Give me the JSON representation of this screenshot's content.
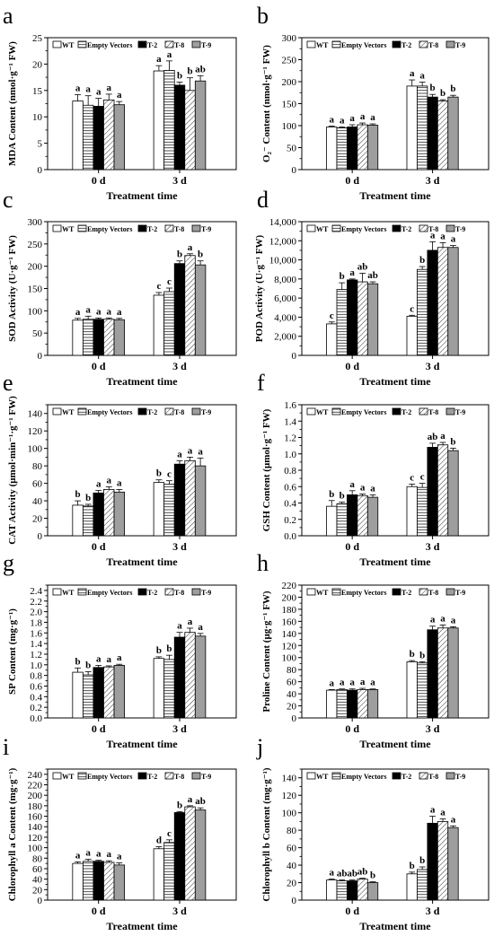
{
  "legend_entries": [
    "WT",
    "Empty Vectors",
    "T-2",
    "T-8",
    "T-9"
  ],
  "colors": {
    "WT": "#ffffff",
    "Empty Vectors": "#ffffff",
    "T-2": "#000000",
    "T-8": "#ffffff",
    "T-9": "#9e9e9e"
  },
  "chart_data": [
    {
      "panel": "a",
      "type": "bar",
      "ylabel": "MDA Content (nmol·g⁻¹ FW)",
      "xlabel": "Treatment time",
      "categories": [
        "0 d",
        "3 d"
      ],
      "ylim": [
        0,
        25
      ],
      "ytick_step": 5,
      "ytick_format": "plain",
      "series": [
        {
          "name": "WT",
          "values": [
            13.0,
            18.7
          ],
          "errors": [
            1.2,
            1.0
          ],
          "letters": [
            "a",
            "a"
          ]
        },
        {
          "name": "Empty Vectors",
          "values": [
            12.2,
            18.8
          ],
          "errors": [
            1.8,
            1.8
          ],
          "letters": [
            "a",
            "a"
          ]
        },
        {
          "name": "T-2",
          "values": [
            12.0,
            16.0
          ],
          "errors": [
            1.5,
            0.6
          ],
          "letters": [
            "a",
            "b"
          ]
        },
        {
          "name": "T-8",
          "values": [
            13.2,
            15.0
          ],
          "errors": [
            1.1,
            2.4
          ],
          "letters": [
            "a",
            "b"
          ]
        },
        {
          "name": "T-9",
          "values": [
            12.3,
            16.8
          ],
          "errors": [
            0.6,
            1.0
          ],
          "letters": [
            "a",
            "ab"
          ]
        }
      ]
    },
    {
      "panel": "b",
      "type": "bar",
      "ylabel": "O₂⁻ Content (nmol·g⁻¹ FW)",
      "xlabel": "Treatment time",
      "categories": [
        "0 d",
        "3 d"
      ],
      "ylim": [
        0,
        300
      ],
      "ytick_step": 50,
      "ytick_format": "plain",
      "series": [
        {
          "name": "WT",
          "values": [
            97,
            190
          ],
          "errors": [
            2,
            14
          ],
          "letters": [
            "a",
            "a"
          ]
        },
        {
          "name": "Empty Vectors",
          "values": [
            95,
            190
          ],
          "errors": [
            2,
            9
          ],
          "letters": [
            "a",
            "a"
          ]
        },
        {
          "name": "T-2",
          "values": [
            97,
            165
          ],
          "errors": [
            5,
            6
          ],
          "letters": [
            "a",
            "b"
          ]
        },
        {
          "name": "T-8",
          "values": [
            102,
            156
          ],
          "errors": [
            4,
            3
          ],
          "letters": [
            "a",
            "b"
          ]
        },
        {
          "name": "T-9",
          "values": [
            101,
            165
          ],
          "errors": [
            3,
            4
          ],
          "letters": [
            "a",
            "b"
          ]
        }
      ]
    },
    {
      "panel": "c",
      "type": "bar",
      "ylabel": "SOD Activity (U·g⁻¹ FW)",
      "xlabel": "Treatment time",
      "categories": [
        "0 d",
        "3 d"
      ],
      "ylim": [
        0,
        300
      ],
      "ytick_step": 50,
      "ytick_format": "plain",
      "series": [
        {
          "name": "WT",
          "values": [
            79,
            135
          ],
          "errors": [
            4,
            6
          ],
          "letters": [
            "a",
            "c"
          ]
        },
        {
          "name": "Empty Vectors",
          "values": [
            81,
            143
          ],
          "errors": [
            7,
            8
          ],
          "letters": [
            "a",
            "c"
          ]
        },
        {
          "name": "T-2",
          "values": [
            81,
            206
          ],
          "errors": [
            3,
            6
          ],
          "letters": [
            "a",
            "b"
          ]
        },
        {
          "name": "T-8",
          "values": [
            81,
            224
          ],
          "errors": [
            3,
            4
          ],
          "letters": [
            "a",
            "a"
          ]
        },
        {
          "name": "T-9",
          "values": [
            80,
            203
          ],
          "errors": [
            3,
            9
          ],
          "letters": [
            "a",
            "b"
          ]
        }
      ]
    },
    {
      "panel": "d",
      "type": "bar",
      "ylabel": "POD Activity (U·g⁻¹ FW)",
      "xlabel": "Treatment time",
      "categories": [
        "0 d",
        "3 d"
      ],
      "ylim": [
        0,
        14000
      ],
      "ytick_step": 2000,
      "ytick_format": "comma",
      "series": [
        {
          "name": "WT",
          "values": [
            3300,
            4100
          ],
          "errors": [
            200,
            100
          ],
          "letters": [
            "c",
            "c"
          ]
        },
        {
          "name": "Empty Vectors",
          "values": [
            6900,
            9000
          ],
          "errors": [
            700,
            300
          ],
          "letters": [
            "b",
            "b"
          ]
        },
        {
          "name": "T-2",
          "values": [
            7900,
            11000
          ],
          "errors": [
            100,
            900
          ],
          "letters": [
            "a",
            "a"
          ]
        },
        {
          "name": "T-8",
          "values": [
            7700,
            11300
          ],
          "errors": [
            900,
            500
          ],
          "letters": [
            "ab",
            "a"
          ]
        },
        {
          "name": "T-9",
          "values": [
            7500,
            11300
          ],
          "errors": [
            200,
            200
          ],
          "letters": [
            "ab",
            "a"
          ]
        }
      ]
    },
    {
      "panel": "e",
      "type": "bar",
      "ylabel": "CAT Activity (μmol·min⁻¹·g⁻¹ FW)",
      "xlabel": "Treatment time",
      "categories": [
        "0 d",
        "3 d"
      ],
      "ylim": [
        0,
        150
      ],
      "ytick_step": 20,
      "ytick_format": "plain",
      "ytick_max": 140,
      "series": [
        {
          "name": "WT",
          "values": [
            35,
            61
          ],
          "errors": [
            5,
            3
          ],
          "letters": [
            "b",
            "b"
          ]
        },
        {
          "name": "Empty Vectors",
          "values": [
            34,
            59
          ],
          "errors": [
            2,
            4
          ],
          "letters": [
            "b",
            "c"
          ]
        },
        {
          "name": "T-2",
          "values": [
            49,
            82
          ],
          "errors": [
            3,
            4
          ],
          "letters": [
            "a",
            "a"
          ]
        },
        {
          "name": "T-8",
          "values": [
            53,
            86
          ],
          "errors": [
            3,
            4
          ],
          "letters": [
            "a",
            "a"
          ]
        },
        {
          "name": "T-9",
          "values": [
            50,
            80
          ],
          "errors": [
            3,
            9
          ],
          "letters": [
            "a",
            "a"
          ]
        }
      ]
    },
    {
      "panel": "f",
      "type": "bar",
      "ylabel": "GSH Content (μmol·g⁻¹ FW)",
      "xlabel": "Treatment time",
      "categories": [
        "0 d",
        "3 d"
      ],
      "ylim": [
        0,
        1.6
      ],
      "ytick_step": 0.2,
      "ytick_format": "dec1",
      "series": [
        {
          "name": "WT",
          "values": [
            0.36,
            0.6
          ],
          "errors": [
            0.07,
            0.03
          ],
          "letters": [
            "b",
            "c"
          ]
        },
        {
          "name": "Empty Vectors",
          "values": [
            0.39,
            0.59
          ],
          "errors": [
            0.02,
            0.05
          ],
          "letters": [
            "b",
            "c"
          ]
        },
        {
          "name": "T-2",
          "values": [
            0.5,
            1.08
          ],
          "errors": [
            0.05,
            0.05
          ],
          "letters": [
            "a",
            "ab"
          ]
        },
        {
          "name": "T-8",
          "values": [
            0.49,
            1.11
          ],
          "errors": [
            0.02,
            0.03
          ],
          "letters": [
            "a",
            "a"
          ]
        },
        {
          "name": "T-9",
          "values": [
            0.47,
            1.04
          ],
          "errors": [
            0.03,
            0.03
          ],
          "letters": [
            "a",
            "b"
          ]
        }
      ]
    },
    {
      "panel": "g",
      "type": "bar",
      "ylabel": "SP Content (mg·g⁻¹)",
      "xlabel": "Treatment time",
      "categories": [
        "0 d",
        "3 d"
      ],
      "ylim": [
        0,
        2.5
      ],
      "ytick_step": 0.2,
      "ytick_format": "dec1",
      "ytick_max": 2.4,
      "series": [
        {
          "name": "WT",
          "values": [
            0.86,
            1.12
          ],
          "errors": [
            0.08,
            0.03
          ],
          "letters": [
            "b",
            "b"
          ]
        },
        {
          "name": "Empty Vectors",
          "values": [
            0.81,
            1.1
          ],
          "errors": [
            0.06,
            0.08
          ],
          "letters": [
            "b",
            "b"
          ]
        },
        {
          "name": "T-2",
          "values": [
            0.95,
            1.52
          ],
          "errors": [
            0.04,
            0.09
          ],
          "letters": [
            "a",
            "a"
          ]
        },
        {
          "name": "T-8",
          "values": [
            0.96,
            1.61
          ],
          "errors": [
            0.02,
            0.08
          ],
          "letters": [
            "a",
            "a"
          ]
        },
        {
          "name": "T-9",
          "values": [
            0.99,
            1.54
          ],
          "errors": [
            0.02,
            0.05
          ],
          "letters": [
            "a",
            "a"
          ]
        }
      ]
    },
    {
      "panel": "h",
      "type": "bar",
      "ylabel": "Proline Content (μg·g⁻¹ FW)",
      "xlabel": "Treatment time",
      "categories": [
        "0 d",
        "3 d"
      ],
      "ylim": [
        0,
        220
      ],
      "ytick_step": 20,
      "ytick_format": "plain",
      "series": [
        {
          "name": "WT",
          "values": [
            46,
            93
          ],
          "errors": [
            1,
            2
          ],
          "letters": [
            "a",
            "b"
          ]
        },
        {
          "name": "Empty Vectors",
          "values": [
            47,
            91
          ],
          "errors": [
            1,
            2
          ],
          "letters": [
            "a",
            "b"
          ]
        },
        {
          "name": "T-2",
          "values": [
            46,
            146
          ],
          "errors": [
            2,
            6
          ],
          "letters": [
            "a",
            "a"
          ]
        },
        {
          "name": "T-8",
          "values": [
            47,
            149
          ],
          "errors": [
            2,
            5
          ],
          "letters": [
            "a",
            "a"
          ]
        },
        {
          "name": "T-9",
          "values": [
            47,
            149
          ],
          "errors": [
            1,
            2
          ],
          "letters": [
            "a",
            "a"
          ]
        }
      ]
    },
    {
      "panel": "i",
      "type": "bar",
      "ylabel": "Chlorophyll a Content (mg·g⁻¹)",
      "xlabel": "Treatment time",
      "categories": [
        "0 d",
        "3 d"
      ],
      "ylim": [
        0,
        250
      ],
      "ytick_step": 20,
      "ytick_format": "plain",
      "ytick_max": 240,
      "series": [
        {
          "name": "WT",
          "values": [
            70,
            98
          ],
          "errors": [
            3,
            4
          ],
          "letters": [
            "a",
            "d"
          ]
        },
        {
          "name": "Empty Vectors",
          "values": [
            74,
            110
          ],
          "errors": [
            4,
            5
          ],
          "letters": [
            "a",
            "c"
          ]
        },
        {
          "name": "T-2",
          "values": [
            74,
            167
          ],
          "errors": [
            2,
            2
          ],
          "letters": [
            "a",
            "b"
          ]
        },
        {
          "name": "T-8",
          "values": [
            72,
            178
          ],
          "errors": [
            3,
            2
          ],
          "letters": [
            "a",
            "a"
          ]
        },
        {
          "name": "T-9",
          "values": [
            67,
            172
          ],
          "errors": [
            4,
            4
          ],
          "letters": [
            "a",
            "ab"
          ]
        }
      ]
    },
    {
      "panel": "j",
      "type": "bar",
      "ylabel": "Chlorophyll b Content (mg·g⁻¹)",
      "xlabel": "Treatment time",
      "categories": [
        "0 d",
        "3 d"
      ],
      "ylim": [
        0,
        150
      ],
      "ytick_step": 20,
      "ytick_format": "plain",
      "ytick_max": 140,
      "series": [
        {
          "name": "WT",
          "values": [
            23,
            30
          ],
          "errors": [
            1,
            2
          ],
          "letters": [
            "a",
            "b"
          ]
        },
        {
          "name": "Empty Vectors",
          "values": [
            22,
            35
          ],
          "errors": [
            1,
            3
          ],
          "letters": [
            "ab",
            "b"
          ]
        },
        {
          "name": "T-2",
          "values": [
            22,
            88
          ],
          "errors": [
            1,
            8
          ],
          "letters": [
            "ab",
            "a"
          ]
        },
        {
          "name": "T-8",
          "values": [
            24,
            90
          ],
          "errors": [
            1,
            3
          ],
          "letters": [
            "ab",
            "a"
          ]
        },
        {
          "name": "T-9",
          "values": [
            20,
            83
          ],
          "errors": [
            1,
            2
          ],
          "letters": [
            "b",
            "a"
          ]
        }
      ]
    }
  ]
}
